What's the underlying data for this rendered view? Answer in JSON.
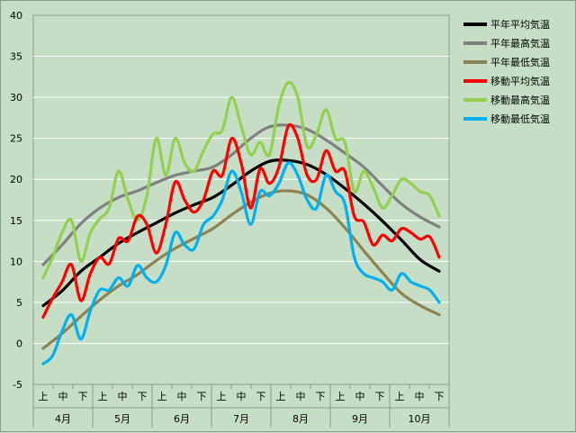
{
  "chart_data": {
    "type": "line",
    "ylim": [
      -5,
      40
    ],
    "y_ticks": [
      "-5",
      "0",
      "5",
      "10",
      "15",
      "20",
      "25",
      "30",
      "35",
      "40"
    ],
    "grid": "horizontal",
    "legend_position": "right",
    "categories": [
      "4月",
      "5月",
      "6月",
      "7月",
      "8月",
      "9月",
      "10月"
    ],
    "subcategories": [
      "上",
      "中",
      "下"
    ],
    "x_range": [
      0,
      21
    ],
    "series": [
      {
        "name": "平年平均気温",
        "color": "#000000",
        "x": [
          0,
          1,
          2,
          3,
          4,
          5,
          6,
          7,
          8,
          9,
          10,
          11,
          12,
          13,
          14,
          15,
          16,
          17,
          18,
          19,
          20,
          21
        ],
        "y": [
          4.6,
          6.4,
          8.8,
          10.5,
          12.2,
          13.5,
          14.7,
          15.9,
          16.9,
          17.8,
          19.3,
          21.0,
          22.2,
          22.3,
          21.8,
          20.6,
          18.9,
          17.0,
          14.9,
          12.6,
          10.2,
          8.8
        ]
      },
      {
        "name": "平年最高気温",
        "color": "#808080",
        "x": [
          0,
          1,
          2,
          3,
          4,
          5,
          6,
          7,
          8,
          9,
          10,
          11,
          12,
          13,
          14,
          15,
          16,
          17,
          18,
          19,
          20,
          21
        ],
        "y": [
          9.6,
          12.0,
          14.6,
          16.5,
          17.8,
          18.6,
          19.6,
          20.5,
          21.0,
          21.5,
          23.0,
          25.0,
          26.4,
          26.6,
          26.1,
          24.8,
          23.2,
          21.5,
          19.2,
          17.0,
          15.4,
          14.2
        ]
      },
      {
        "name": "平年最低気温",
        "color": "#8b8452",
        "x": [
          0,
          1,
          2,
          3,
          4,
          5,
          6,
          7,
          8,
          9,
          10,
          11,
          12,
          13,
          14,
          15,
          16,
          17,
          18,
          19,
          20,
          21
        ],
        "y": [
          -0.6,
          1.2,
          3.3,
          5.3,
          7.0,
          8.4,
          10.1,
          11.6,
          12.8,
          14.0,
          15.7,
          17.2,
          18.3,
          18.6,
          18.1,
          16.5,
          14.1,
          11.3,
          8.6,
          6.1,
          4.6,
          3.5
        ]
      },
      {
        "name": "移動平均気温",
        "color": "#ff0000",
        "x": [
          0,
          0.5,
          1,
          1.5,
          2,
          2.5,
          3,
          3.5,
          4,
          4.5,
          5,
          5.5,
          6,
          6.5,
          7,
          7.5,
          8,
          8.5,
          9,
          9.5,
          10,
          10.5,
          11,
          11.5,
          12,
          12.5,
          13,
          13.5,
          14,
          14.5,
          15,
          15.5,
          16,
          16.5,
          17,
          17.5,
          18,
          18.5,
          19,
          19.5,
          20,
          20.5,
          21
        ],
        "y": [
          3.2,
          5.5,
          7.5,
          9.6,
          5.2,
          8.5,
          10.5,
          9.7,
          12.8,
          12.5,
          15.5,
          14.5,
          11.0,
          14.5,
          19.7,
          17.5,
          16.0,
          17.5,
          21.0,
          20.5,
          25.0,
          22.0,
          16.5,
          21.3,
          19.5,
          21.5,
          26.5,
          25.0,
          20.5,
          20.0,
          23.5,
          21.0,
          21.0,
          15.5,
          14.8,
          12.0,
          13.2,
          12.5,
          14.0,
          13.5,
          12.7,
          13.0,
          10.5
        ]
      },
      {
        "name": "移動最高気温",
        "color": "#92d050",
        "x": [
          0,
          0.5,
          1,
          1.5,
          2,
          2.5,
          3,
          3.5,
          4,
          4.5,
          5,
          5.5,
          6,
          6.5,
          7,
          7.5,
          8,
          8.5,
          9,
          9.5,
          10,
          10.5,
          11,
          11.5,
          12,
          12.5,
          13,
          13.5,
          14,
          14.5,
          15,
          15.5,
          16,
          16.5,
          17,
          17.5,
          18,
          18.5,
          19,
          19.5,
          20,
          20.5,
          21
        ],
        "y": [
          8.0,
          10.5,
          13.5,
          15.0,
          10.0,
          13.5,
          15.2,
          16.5,
          21.0,
          17.5,
          15.0,
          18.0,
          25.0,
          20.5,
          25.0,
          22.0,
          21.0,
          23.5,
          25.5,
          26.0,
          30.0,
          26.5,
          23.0,
          24.5,
          23.0,
          29.0,
          31.8,
          30.0,
          24.0,
          25.5,
          28.5,
          25.0,
          24.5,
          18.5,
          21.0,
          19.0,
          16.5,
          18.0,
          20.0,
          19.5,
          18.5,
          18.0,
          15.5
        ]
      },
      {
        "name": "移動最低気温",
        "color": "#00b0f0",
        "x": [
          0,
          0.5,
          1,
          1.5,
          2,
          2.5,
          3,
          3.5,
          4,
          4.5,
          5,
          5.5,
          6,
          6.5,
          7,
          7.5,
          8,
          8.5,
          9,
          9.5,
          10,
          10.5,
          11,
          11.5,
          12,
          12.5,
          13,
          13.5,
          14,
          14.5,
          15,
          15.5,
          16,
          16.5,
          17,
          17.5,
          18,
          18.5,
          19,
          19.5,
          20,
          20.5,
          21
        ],
        "y": [
          -2.5,
          -1.5,
          1.5,
          3.5,
          0.5,
          4.0,
          6.5,
          6.5,
          8.0,
          7.0,
          9.5,
          8.0,
          7.5,
          9.5,
          13.5,
          12.0,
          11.5,
          14.5,
          15.5,
          17.5,
          21.0,
          18.5,
          14.5,
          18.5,
          18.0,
          19.5,
          22.0,
          20.5,
          17.5,
          16.5,
          20.5,
          18.5,
          17.0,
          10.5,
          8.5,
          8.0,
          7.5,
          6.5,
          8.5,
          7.5,
          7.0,
          6.5,
          5.0
        ]
      }
    ]
  }
}
